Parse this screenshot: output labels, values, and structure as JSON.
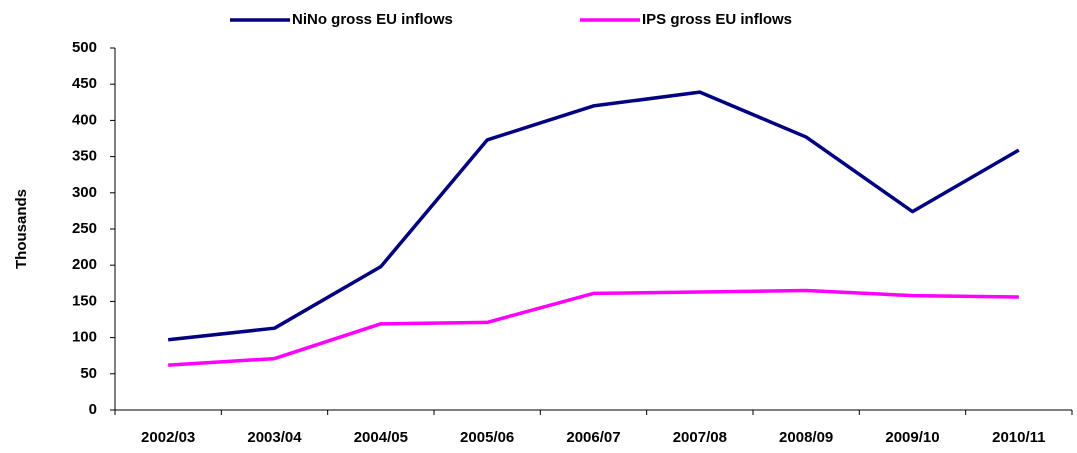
{
  "chart_data": {
    "type": "line",
    "y_label": "Thousands",
    "categories": [
      "2002/03",
      "2003/04",
      "2004/05",
      "2005/06",
      "2006/07",
      "2007/08",
      "2008/09",
      "2009/10",
      "2010/11"
    ],
    "series": [
      {
        "name": "NiNo gross EU inflows",
        "color": "#000080",
        "values": [
          97,
          113,
          198,
          373,
          420,
          439,
          377,
          274,
          359
        ]
      },
      {
        "name": "IPS gross EU inflows",
        "color": "#ff00ff",
        "values": [
          62,
          71,
          119,
          121,
          161,
          163,
          165,
          158,
          156
        ]
      }
    ],
    "ylim": [
      0,
      500
    ],
    "yticks": [
      0,
      50,
      100,
      150,
      200,
      250,
      300,
      350,
      400,
      450,
      500
    ],
    "legend": "top",
    "grid": false
  }
}
